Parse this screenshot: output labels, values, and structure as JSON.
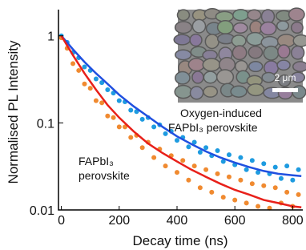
{
  "chart_data": {
    "type": "scatter",
    "xlabel": "Decay time (ns)",
    "ylabel": "Normalised PL Intensity",
    "xlim": [
      -10,
      835
    ],
    "xticks": [
      0,
      200,
      400,
      600,
      800
    ],
    "ylim": [
      0.01,
      2
    ],
    "yticks": [
      0.01,
      0.1,
      1
    ],
    "log_y": true,
    "annotations": [
      "Oxygen-induced",
      "FAPbI₃ perovskite",
      "FAPbI₃",
      "perovskite"
    ],
    "inset_scale_label": "2 μm",
    "series": [
      {
        "kind": "points",
        "color": "#1e9be0",
        "x": [
          0,
          20,
          40,
          60,
          80,
          100,
          120,
          140,
          160,
          180,
          200,
          220,
          240,
          260,
          280,
          300,
          320,
          340,
          360,
          380,
          400,
          420,
          440,
          460,
          480,
          500,
          520,
          540,
          560,
          580,
          600,
          620,
          640,
          660,
          680,
          700,
          720,
          740,
          760,
          780,
          800,
          820
        ],
        "values": [
          1.0,
          0.84,
          0.64,
          0.56,
          0.44,
          0.4,
          0.32,
          0.29,
          0.24,
          0.22,
          0.18,
          0.175,
          0.14,
          0.135,
          0.11,
          0.115,
          0.09,
          0.095,
          0.075,
          0.08,
          0.063,
          0.068,
          0.053,
          0.06,
          0.046,
          0.052,
          0.042,
          0.048,
          0.036,
          0.043,
          0.033,
          0.04,
          0.029,
          0.037,
          0.027,
          0.034,
          0.026,
          0.031,
          0.023,
          0.032,
          0.022,
          0.029
        ]
      },
      {
        "kind": "points",
        "color": "#f08a30",
        "x": [
          0,
          20,
          40,
          60,
          80,
          100,
          120,
          140,
          160,
          180,
          200,
          220,
          240,
          260,
          280,
          300,
          320,
          340,
          360,
          380,
          400,
          420,
          440,
          460,
          480,
          500,
          520,
          540,
          560,
          580,
          600,
          620,
          640,
          660,
          680,
          700,
          720,
          740,
          760,
          780,
          800,
          820
        ],
        "values": [
          0.95,
          0.72,
          0.48,
          0.4,
          0.28,
          0.25,
          0.18,
          0.17,
          0.12,
          0.115,
          0.09,
          0.09,
          0.068,
          0.072,
          0.052,
          0.06,
          0.04,
          0.05,
          0.032,
          0.042,
          0.027,
          0.037,
          0.022,
          0.032,
          0.018,
          0.029,
          0.016,
          0.026,
          0.014,
          0.024,
          0.013,
          0.022,
          0.012,
          0.02,
          0.011,
          0.019,
          0.0105,
          0.018,
          0.012,
          0.016,
          0.011,
          0.015
        ]
      },
      {
        "kind": "line",
        "color": "#2050e0",
        "x": [
          0,
          40,
          80,
          120,
          160,
          200,
          250,
          300,
          350,
          400,
          450,
          500,
          550,
          600,
          650,
          700,
          750,
          800,
          830
        ],
        "values": [
          1,
          0.7,
          0.5,
          0.37,
          0.28,
          0.21,
          0.155,
          0.118,
          0.09,
          0.07,
          0.057,
          0.047,
          0.04,
          0.035,
          0.031,
          0.028,
          0.026,
          0.025,
          0.0245
        ]
      },
      {
        "kind": "line",
        "color": "#e8201a",
        "x": [
          0,
          40,
          80,
          120,
          160,
          200,
          250,
          300,
          350,
          400,
          450,
          500,
          550,
          600,
          650,
          700,
          750,
          800,
          830
        ],
        "values": [
          1,
          0.6,
          0.37,
          0.24,
          0.16,
          0.115,
          0.08,
          0.058,
          0.045,
          0.036,
          0.029,
          0.024,
          0.02,
          0.017,
          0.015,
          0.013,
          0.012,
          0.011,
          0.0107
        ]
      }
    ]
  }
}
